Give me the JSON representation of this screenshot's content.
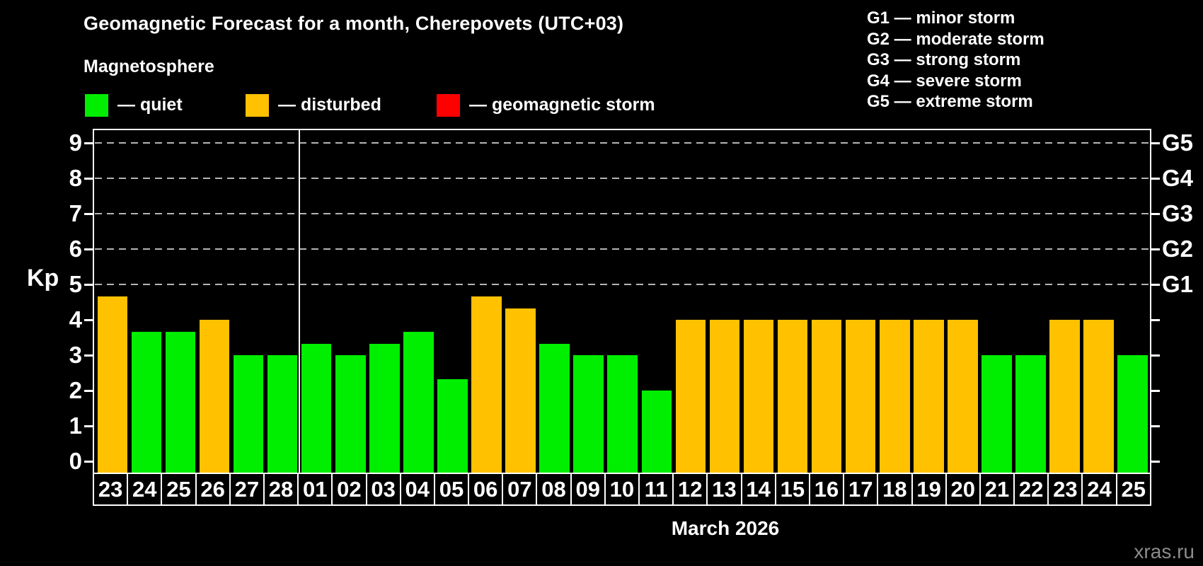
{
  "chart_data": {
    "type": "bar",
    "title": "Geomagnetic Forecast for a month, Cherepovets (UTC+03)",
    "subtitle": "Magnetosphere",
    "ylabel": "Kp",
    "xlabel": "March 2026",
    "watermark": "xras.ru",
    "ylim": [
      0,
      9
    ],
    "yticks": [
      0,
      1,
      2,
      3,
      4,
      5,
      6,
      7,
      8,
      9
    ],
    "grid": "dashed horizontal lines at Kp 5,6,7,8,9",
    "legend_position": "top-left",
    "legend": [
      {
        "status": "quiet",
        "label": "— quiet",
        "color": "#00ee00"
      },
      {
        "status": "disturbed",
        "label": "— disturbed",
        "color": "#ffc100"
      },
      {
        "status": "storm",
        "label": "— geomagnetic storm",
        "color": "#ff0000"
      }
    ],
    "g_legend": [
      "G1 — minor storm",
      "G2 — moderate storm",
      "G3 — strong storm",
      "G4 — severe storm",
      "G5 — extreme storm"
    ],
    "right_axis": [
      {
        "label": "G1",
        "kp": 5
      },
      {
        "label": "G2",
        "kp": 6
      },
      {
        "label": "G3",
        "kp": 7
      },
      {
        "label": "G4",
        "kp": 8
      },
      {
        "label": "G5",
        "kp": 9
      }
    ],
    "month_divider_after_index": 5,
    "bars": [
      {
        "day": "23",
        "kp": 4.67,
        "status": "disturbed"
      },
      {
        "day": "24",
        "kp": 3.67,
        "status": "quiet"
      },
      {
        "day": "25",
        "kp": 3.67,
        "status": "quiet"
      },
      {
        "day": "26",
        "kp": 4.0,
        "status": "disturbed"
      },
      {
        "day": "27",
        "kp": 3.0,
        "status": "quiet"
      },
      {
        "day": "28",
        "kp": 3.0,
        "status": "quiet"
      },
      {
        "day": "01",
        "kp": 3.33,
        "status": "quiet"
      },
      {
        "day": "02",
        "kp": 3.0,
        "status": "quiet"
      },
      {
        "day": "03",
        "kp": 3.33,
        "status": "quiet"
      },
      {
        "day": "04",
        "kp": 3.67,
        "status": "quiet"
      },
      {
        "day": "05",
        "kp": 2.33,
        "status": "quiet"
      },
      {
        "day": "06",
        "kp": 4.67,
        "status": "disturbed"
      },
      {
        "day": "07",
        "kp": 4.33,
        "status": "disturbed"
      },
      {
        "day": "08",
        "kp": 3.33,
        "status": "quiet"
      },
      {
        "day": "09",
        "kp": 3.0,
        "status": "quiet"
      },
      {
        "day": "10",
        "kp": 3.0,
        "status": "quiet"
      },
      {
        "day": "11",
        "kp": 2.0,
        "status": "quiet"
      },
      {
        "day": "12",
        "kp": 4.0,
        "status": "disturbed"
      },
      {
        "day": "13",
        "kp": 4.0,
        "status": "disturbed"
      },
      {
        "day": "14",
        "kp": 4.0,
        "status": "disturbed"
      },
      {
        "day": "15",
        "kp": 4.0,
        "status": "disturbed"
      },
      {
        "day": "16",
        "kp": 4.0,
        "status": "disturbed"
      },
      {
        "day": "17",
        "kp": 4.0,
        "status": "disturbed"
      },
      {
        "day": "18",
        "kp": 4.0,
        "status": "disturbed"
      },
      {
        "day": "19",
        "kp": 4.0,
        "status": "disturbed"
      },
      {
        "day": "20",
        "kp": 4.0,
        "status": "disturbed"
      },
      {
        "day": "21",
        "kp": 3.0,
        "status": "quiet"
      },
      {
        "day": "22",
        "kp": 3.0,
        "status": "quiet"
      },
      {
        "day": "23",
        "kp": 4.0,
        "status": "disturbed"
      },
      {
        "day": "24",
        "kp": 4.0,
        "status": "disturbed"
      },
      {
        "day": "25",
        "kp": 3.0,
        "status": "quiet"
      }
    ]
  }
}
